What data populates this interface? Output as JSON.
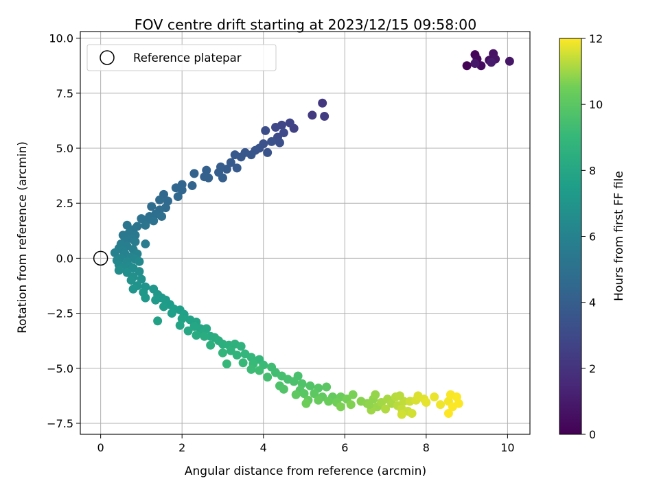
{
  "chart_data": {
    "type": "scatter",
    "title": "FOV centre drift starting at 2023/12/15 09:58:00",
    "xlabel": "Angular distance from reference (arcmin)",
    "ylabel": "Rotation from reference (arcmin)",
    "xlim": [
      -0.5,
      10.55
    ],
    "ylim": [
      -8.0,
      10.3
    ],
    "xticks": [
      "0",
      "2",
      "4",
      "6",
      "8",
      "10"
    ],
    "xtick_values": [
      0,
      2,
      4,
      6,
      8,
      10
    ],
    "yticks": [
      "10.0",
      "7.5",
      "5.0",
      "2.5",
      "0.0",
      "−2.5",
      "−5.0",
      "−7.5"
    ],
    "ytick_values": [
      10.0,
      7.5,
      5.0,
      2.5,
      0.0,
      -2.5,
      -5.0,
      -7.5
    ],
    "grid": true,
    "legend": {
      "entries": [
        "Reference platepar"
      ],
      "placement": "upper-left"
    },
    "reference_point": {
      "x": 0,
      "y": 0,
      "marker": "open-circle"
    },
    "colorbar": {
      "label": "Hours from first FF file",
      "colormap": "viridis",
      "range": [
        0,
        12
      ],
      "ticks": [
        "0",
        "2",
        "4",
        "6",
        "8",
        "10",
        "12"
      ],
      "tick_values": [
        0,
        2,
        4,
        6,
        8,
        10,
        12
      ]
    },
    "series": [
      {
        "values": [
          [
            9.0,
            8.75,
            0.1
          ],
          [
            9.2,
            9.25,
            0.2
          ],
          [
            9.25,
            9.05,
            0.3
          ],
          [
            9.35,
            8.75,
            0.4
          ],
          [
            9.55,
            9.0,
            0.5
          ],
          [
            9.65,
            9.3,
            0.6
          ],
          [
            9.7,
            9.05,
            0.7
          ],
          [
            10.05,
            8.95,
            0.8
          ],
          [
            9.2,
            8.85,
            0.9
          ],
          [
            9.6,
            8.9,
            1.0
          ],
          [
            5.45,
            7.05,
            2.2
          ],
          [
            5.2,
            6.5,
            2.3
          ],
          [
            5.5,
            6.45,
            2.4
          ],
          [
            4.75,
            5.9,
            2.6
          ],
          [
            4.65,
            6.15,
            2.7
          ],
          [
            4.45,
            6.05,
            2.8
          ],
          [
            4.3,
            5.95,
            2.9
          ],
          [
            4.5,
            5.7,
            3.0
          ],
          [
            4.35,
            5.5,
            3.1
          ],
          [
            4.05,
            5.8,
            3.2
          ],
          [
            4.4,
            5.25,
            3.3
          ],
          [
            4.2,
            5.3,
            3.35
          ],
          [
            4.0,
            5.2,
            3.4
          ],
          [
            3.9,
            5.0,
            3.45
          ],
          [
            4.1,
            4.8,
            3.5
          ],
          [
            3.8,
            4.9,
            3.55
          ],
          [
            3.7,
            4.7,
            3.6
          ],
          [
            3.55,
            4.8,
            3.65
          ],
          [
            3.45,
            4.6,
            3.7
          ],
          [
            3.3,
            4.7,
            3.75
          ],
          [
            3.2,
            4.35,
            3.8
          ],
          [
            3.35,
            4.1,
            3.85
          ],
          [
            3.1,
            4.05,
            3.9
          ],
          [
            2.95,
            4.15,
            3.95
          ],
          [
            2.9,
            3.9,
            4.0
          ],
          [
            3.0,
            3.65,
            4.05
          ],
          [
            2.6,
            4.0,
            4.1
          ],
          [
            2.55,
            3.7,
            4.15
          ],
          [
            2.65,
            3.65,
            4.2
          ],
          [
            2.3,
            3.85,
            4.25
          ],
          [
            2.25,
            3.3,
            4.3
          ],
          [
            2.0,
            3.35,
            4.35
          ],
          [
            2.0,
            3.1,
            4.4
          ],
          [
            1.85,
            3.2,
            4.45
          ],
          [
            1.9,
            2.8,
            4.5
          ],
          [
            1.55,
            2.9,
            4.55
          ],
          [
            1.65,
            2.6,
            4.6
          ],
          [
            1.45,
            2.65,
            4.65
          ],
          [
            1.6,
            2.3,
            4.7
          ],
          [
            1.45,
            2.2,
            4.75
          ],
          [
            1.25,
            2.35,
            4.8
          ],
          [
            1.35,
            2.0,
            4.85
          ],
          [
            1.2,
            1.9,
            4.9
          ],
          [
            1.5,
            1.9,
            4.95
          ],
          [
            1.15,
            1.75,
            5.0
          ],
          [
            1.0,
            1.8,
            5.05
          ],
          [
            1.3,
            1.7,
            5.1
          ],
          [
            1.1,
            1.5,
            5.15
          ],
          [
            0.9,
            1.45,
            5.2
          ],
          [
            0.65,
            1.5,
            5.25
          ],
          [
            0.8,
            1.3,
            5.3
          ],
          [
            0.7,
            1.15,
            5.35
          ],
          [
            0.85,
            1.05,
            5.4
          ],
          [
            0.55,
            1.05,
            5.45
          ],
          [
            0.75,
            0.9,
            5.5
          ],
          [
            0.6,
            0.8,
            5.55
          ],
          [
            0.85,
            0.75,
            5.6
          ],
          [
            1.1,
            0.65,
            5.65
          ],
          [
            0.5,
            0.65,
            5.7
          ],
          [
            0.65,
            0.55,
            5.75
          ],
          [
            0.45,
            0.45,
            5.8
          ],
          [
            0.8,
            0.4,
            5.85
          ],
          [
            0.55,
            0.35,
            5.9
          ],
          [
            0.35,
            0.25,
            5.95
          ],
          [
            0.6,
            0.2,
            6.0
          ],
          [
            0.9,
            0.2,
            6.05
          ],
          [
            0.75,
            0.05,
            6.1
          ],
          [
            0.5,
            0.0,
            6.15
          ],
          [
            0.85,
            -0.05,
            6.2
          ],
          [
            0.4,
            -0.1,
            6.25
          ],
          [
            0.65,
            -0.15,
            6.3
          ],
          [
            0.95,
            -0.15,
            6.35
          ],
          [
            0.45,
            -0.3,
            6.4
          ],
          [
            0.7,
            -0.35,
            6.45
          ],
          [
            0.55,
            -0.45,
            6.5
          ],
          [
            0.8,
            -0.45,
            6.55
          ],
          [
            0.45,
            -0.55,
            6.6
          ],
          [
            0.95,
            -0.6,
            6.65
          ],
          [
            0.65,
            -0.65,
            6.7
          ],
          [
            0.8,
            -0.85,
            6.75
          ],
          [
            1.0,
            -0.95,
            6.8
          ],
          [
            0.75,
            -1.0,
            6.85
          ],
          [
            0.9,
            -1.25,
            6.9
          ],
          [
            1.1,
            -1.3,
            6.95
          ],
          [
            0.8,
            -1.4,
            7.0
          ],
          [
            1.3,
            -1.4,
            7.05
          ],
          [
            1.05,
            -1.55,
            7.1
          ],
          [
            1.4,
            -1.65,
            7.15
          ],
          [
            1.1,
            -1.8,
            7.2
          ],
          [
            1.5,
            -1.8,
            7.25
          ],
          [
            1.35,
            -1.9,
            7.3
          ],
          [
            1.6,
            -1.9,
            7.35
          ],
          [
            1.7,
            -2.1,
            7.4
          ],
          [
            1.55,
            -2.2,
            7.45
          ],
          [
            1.8,
            -2.3,
            7.5
          ],
          [
            1.95,
            -2.35,
            7.55
          ],
          [
            1.75,
            -2.5,
            7.6
          ],
          [
            2.05,
            -2.55,
            7.65
          ],
          [
            1.4,
            -2.85,
            7.7
          ],
          [
            2.0,
            -2.75,
            7.75
          ],
          [
            2.2,
            -2.8,
            7.8
          ],
          [
            2.35,
            -2.9,
            7.85
          ],
          [
            1.95,
            -3.05,
            7.9
          ],
          [
            2.3,
            -3.1,
            7.95
          ],
          [
            2.45,
            -3.2,
            8.0
          ],
          [
            2.15,
            -3.3,
            8.05
          ],
          [
            2.6,
            -3.2,
            8.1
          ],
          [
            2.5,
            -3.4,
            8.15
          ],
          [
            2.7,
            -3.55,
            8.2
          ],
          [
            2.35,
            -3.5,
            8.25
          ],
          [
            2.55,
            -3.55,
            8.3
          ],
          [
            2.8,
            -3.6,
            8.35
          ],
          [
            2.9,
            -3.75,
            8.4
          ],
          [
            3.0,
            -3.9,
            8.45
          ],
          [
            2.7,
            -3.95,
            8.5
          ],
          [
            3.15,
            -3.95,
            8.55
          ],
          [
            3.3,
            -3.9,
            8.6
          ],
          [
            3.45,
            -4.0,
            8.65
          ],
          [
            3.2,
            -4.2,
            8.7
          ],
          [
            3.35,
            -4.4,
            8.75
          ],
          [
            3.0,
            -4.3,
            8.8
          ],
          [
            3.55,
            -4.35,
            8.85
          ],
          [
            3.7,
            -4.5,
            8.9
          ],
          [
            3.9,
            -4.6,
            8.95
          ],
          [
            3.1,
            -4.8,
            9.0
          ],
          [
            3.5,
            -4.75,
            9.05
          ],
          [
            3.75,
            -4.8,
            9.1
          ],
          [
            4.0,
            -4.85,
            9.15
          ],
          [
            3.7,
            -5.05,
            9.2
          ],
          [
            4.2,
            -4.95,
            9.25
          ],
          [
            3.9,
            -5.1,
            9.3
          ],
          [
            4.3,
            -5.2,
            9.35
          ],
          [
            4.1,
            -5.4,
            9.4
          ],
          [
            4.45,
            -5.35,
            9.45
          ],
          [
            4.6,
            -5.5,
            9.5
          ],
          [
            4.85,
            -5.35,
            9.55
          ],
          [
            4.75,
            -5.6,
            9.6
          ],
          [
            4.4,
            -5.8,
            9.65
          ],
          [
            4.95,
            -5.7,
            9.7
          ],
          [
            4.5,
            -5.95,
            9.75
          ],
          [
            5.15,
            -5.8,
            9.8
          ],
          [
            4.9,
            -6.0,
            9.85
          ],
          [
            5.35,
            -5.9,
            9.9
          ],
          [
            5.0,
            -6.15,
            9.95
          ],
          [
            5.55,
            -5.85,
            10.0
          ],
          [
            5.25,
            -6.15,
            10.05
          ],
          [
            4.8,
            -6.2,
            10.1
          ],
          [
            5.45,
            -6.3,
            10.15
          ],
          [
            5.1,
            -6.45,
            10.2
          ],
          [
            5.7,
            -6.3,
            10.25
          ],
          [
            5.35,
            -6.45,
            10.3
          ],
          [
            5.6,
            -6.5,
            10.35
          ],
          [
            5.9,
            -6.3,
            10.4
          ],
          [
            5.05,
            -6.6,
            10.45
          ],
          [
            5.8,
            -6.55,
            10.5
          ],
          [
            6.05,
            -6.4,
            10.55
          ],
          [
            6.2,
            -6.2,
            10.6
          ],
          [
            5.9,
            -6.75,
            10.65
          ],
          [
            6.15,
            -6.65,
            10.7
          ],
          [
            6.4,
            -6.5,
            10.75
          ],
          [
            6.55,
            -6.6,
            10.8
          ],
          [
            6.7,
            -6.4,
            10.85
          ],
          [
            6.75,
            -6.2,
            10.9
          ],
          [
            6.8,
            -6.75,
            10.95
          ],
          [
            6.65,
            -6.9,
            11.0
          ],
          [
            6.9,
            -6.55,
            11.05
          ],
          [
            7.05,
            -6.4,
            11.1
          ],
          [
            7.15,
            -6.6,
            11.15
          ],
          [
            7.0,
            -6.85,
            11.2
          ],
          [
            7.25,
            -6.3,
            11.25
          ],
          [
            7.3,
            -6.7,
            11.3
          ],
          [
            7.45,
            -6.5,
            11.35
          ],
          [
            7.4,
            -6.85,
            11.4
          ],
          [
            7.55,
            -6.95,
            11.45
          ],
          [
            7.6,
            -6.5,
            11.5
          ],
          [
            7.4,
            -7.1,
            11.55
          ],
          [
            7.75,
            -6.45,
            11.6
          ],
          [
            7.8,
            -6.25,
            11.65
          ],
          [
            7.95,
            -6.4,
            11.7
          ],
          [
            8.0,
            -6.55,
            11.75
          ],
          [
            8.2,
            -6.3,
            11.8
          ],
          [
            8.35,
            -6.65,
            11.85
          ],
          [
            8.55,
            -6.5,
            11.9
          ],
          [
            8.6,
            -6.2,
            11.95
          ],
          [
            8.75,
            -6.3,
            11.97
          ],
          [
            8.65,
            -6.75,
            11.98
          ],
          [
            8.8,
            -6.6,
            11.99
          ],
          [
            8.55,
            -7.05,
            12.0
          ],
          [
            7.65,
            -7.05,
            11.55
          ],
          [
            7.35,
            -6.25,
            11.3
          ],
          [
            6.6,
            -6.65,
            10.85
          ]
        ]
      }
    ]
  },
  "colors": {
    "reference_marker": "#000000",
    "grid": "#b0b0b0",
    "axes": "#000000"
  }
}
